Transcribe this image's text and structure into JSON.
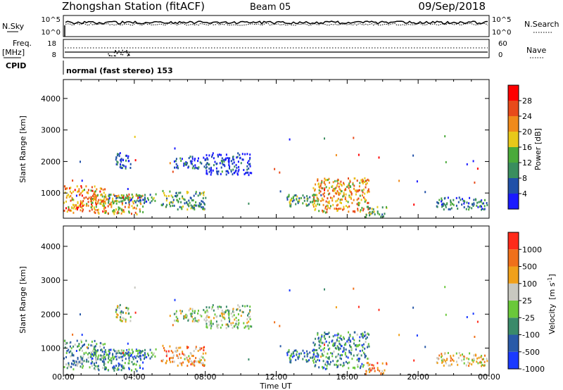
{
  "header": {
    "station": "Zhongshan Station (fitACF)",
    "beam": "Beam 05",
    "date": "09/Sep/2018"
  },
  "params": {
    "nsky_label": "N.Sky",
    "nsky_ticks": [
      "10^5",
      "10^0"
    ],
    "nsearch_label": "N.Search",
    "nsearch_ticks": [
      "10^5",
      "10^0"
    ],
    "freq_label": "Freq.",
    "freq_unit": "[MHz]",
    "freq_ticks": [
      "18",
      "8"
    ],
    "nave_label": "Nave",
    "nave_ticks": [
      "60",
      "0"
    ],
    "cpid_label": "CPID",
    "cpid_text": "normal (fast stereo) 153"
  },
  "colors": {
    "power": [
      "#1a1aff",
      "#2050a8",
      "#3a8e5e",
      "#4aaa3a",
      "#e8c81a",
      "#f08a1a",
      "#e84a1a",
      "#ff0000"
    ],
    "velocity": [
      "#1a3aff",
      "#2a5aa8",
      "#3a8a6a",
      "#6ac83a",
      "#c8c8c0",
      "#f0a01a",
      "#f0701a",
      "#ff2a1a"
    ]
  },
  "chart_data": [
    {
      "type": "heatmap",
      "panel": "power",
      "ylabel": "Slant Range [km]",
      "yticks": [
        1000,
        2000,
        3000,
        4000
      ],
      "ylim": [
        200,
        4600
      ],
      "xlim": [
        0,
        24
      ],
      "xticks": [
        "00:00",
        "04:00",
        "08:00",
        "12:00",
        "16:00",
        "20:00",
        "00:00"
      ],
      "colorbar": {
        "label": "Power [dB]",
        "ticks": [
          "28",
          "24",
          "20",
          "16",
          "12",
          "8",
          "4"
        ],
        "range": [
          0,
          30
        ]
      },
      "regions": [
        {
          "t0": 0.0,
          "t1": 2.4,
          "r0": 400,
          "r1": 1250,
          "level": 0.7
        },
        {
          "t0": 1.5,
          "t1": 4.5,
          "r0": 350,
          "r1": 1000,
          "level": 0.6
        },
        {
          "t0": 2.5,
          "t1": 5.2,
          "r0": 700,
          "r1": 1000,
          "level": 0.3
        },
        {
          "t0": 2.8,
          "t1": 3.8,
          "r0": 1800,
          "r1": 2300,
          "level": 0.15
        },
        {
          "t0": 6.2,
          "t1": 8.0,
          "r0": 1800,
          "r1": 2200,
          "level": 0.2
        },
        {
          "t0": 8.0,
          "t1": 10.6,
          "r0": 1600,
          "r1": 2300,
          "level": 0.12
        },
        {
          "t0": 5.5,
          "t1": 8.0,
          "r0": 500,
          "r1": 1100,
          "level": 0.35
        },
        {
          "t0": 12.5,
          "t1": 14.5,
          "r0": 600,
          "r1": 1000,
          "level": 0.35
        },
        {
          "t0": 14.0,
          "t1": 17.2,
          "r0": 400,
          "r1": 1500,
          "level": 0.65
        },
        {
          "t0": 17.0,
          "t1": 18.2,
          "r0": 250,
          "r1": 600,
          "level": 0.35
        },
        {
          "t0": 21.0,
          "t1": 24.0,
          "r0": 500,
          "r1": 900,
          "level": 0.25
        }
      ]
    },
    {
      "type": "heatmap",
      "panel": "velocity",
      "ylabel": "Slant Range [km]",
      "yticks": [
        1000,
        2000,
        3000,
        4000
      ],
      "ylim": [
        200,
        4600
      ],
      "xlim": [
        0,
        24
      ],
      "xlabel": "Time UT",
      "xticks": [
        "00:00",
        "04:00",
        "08:00",
        "12:00",
        "16:00",
        "20:00",
        "00:00"
      ],
      "colorbar": {
        "label": "Velocity",
        "unit": "[m s",
        "unit_sup": "-1",
        "unit_close": "]",
        "ticks": [
          "1000",
          "500",
          "100",
          "25",
          "-25",
          "-100",
          "-500",
          "-1000"
        ],
        "range": [
          -1200,
          1200
        ]
      },
      "regions": [
        {
          "t0": 0.0,
          "t1": 2.4,
          "r0": 400,
          "r1": 1250,
          "level": 0.35
        },
        {
          "t0": 1.5,
          "t1": 4.5,
          "r0": 350,
          "r1": 1000,
          "level": 0.3
        },
        {
          "t0": 2.5,
          "t1": 5.2,
          "r0": 700,
          "r1": 1000,
          "level": 0.3
        },
        {
          "t0": 2.8,
          "t1": 3.8,
          "r0": 1800,
          "r1": 2300,
          "level": 0.5
        },
        {
          "t0": 6.2,
          "t1": 8.0,
          "r0": 1800,
          "r1": 2200,
          "level": 0.5
        },
        {
          "t0": 8.0,
          "t1": 10.6,
          "r0": 1600,
          "r1": 2300,
          "level": 0.5
        },
        {
          "t0": 5.5,
          "t1": 8.0,
          "r0": 500,
          "r1": 1100,
          "level": 0.7
        },
        {
          "t0": 12.5,
          "t1": 14.5,
          "r0": 600,
          "r1": 1000,
          "level": 0.25
        },
        {
          "t0": 14.0,
          "t1": 17.2,
          "r0": 400,
          "r1": 1500,
          "level": 0.3
        },
        {
          "t0": 17.0,
          "t1": 18.2,
          "r0": 250,
          "r1": 600,
          "level": 0.75
        },
        {
          "t0": 21.0,
          "t1": 24.0,
          "r0": 500,
          "r1": 900,
          "level": 0.6
        }
      ]
    }
  ]
}
